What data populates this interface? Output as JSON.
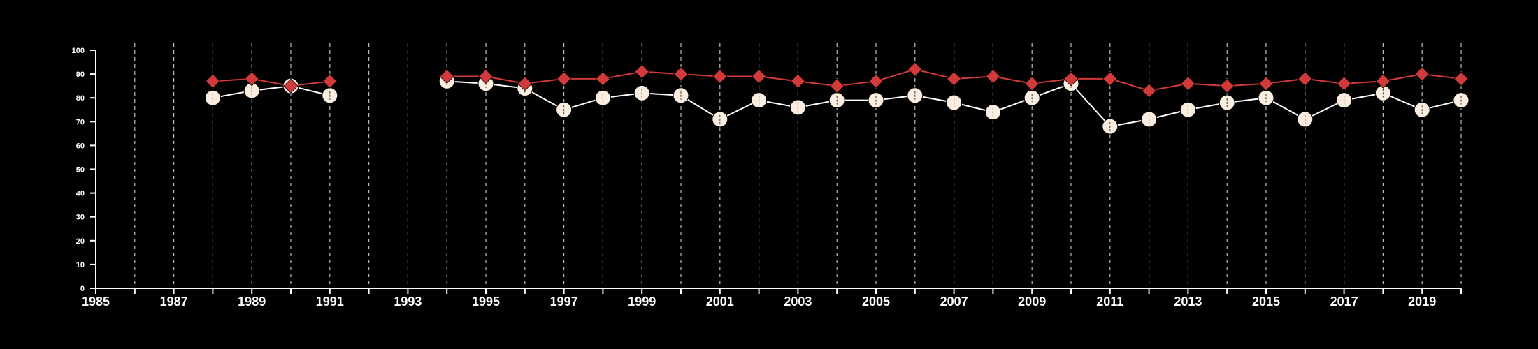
{
  "chart_data": {
    "type": "line",
    "title": "",
    "xlabel": "",
    "ylabel": "",
    "xlim": [
      1985,
      2020
    ],
    "ylim": [
      0,
      100
    ],
    "grid": "vertical dashed lines at each year",
    "legend": "none",
    "x_ticks": [
      1985,
      1987,
      1989,
      1991,
      1993,
      1995,
      1997,
      1999,
      2001,
      2003,
      2005,
      2007,
      2009,
      2011,
      2013,
      2015,
      2017,
      2019
    ],
    "y_ticks": [
      0,
      10,
      20,
      30,
      40,
      50,
      60,
      70,
      80,
      90,
      100
    ],
    "series": [
      {
        "color": "#d03a3a",
        "marker": "diamond",
        "line_color": "#d03a3a",
        "segments": [
          {
            "x": [
              1988,
              1989,
              1990,
              1991
            ],
            "y": [
              87,
              88,
              85,
              87
            ]
          },
          {
            "x": [
              1994,
              1995,
              1996,
              1997,
              1998,
              1999,
              2000,
              2001,
              2002,
              2003,
              2004,
              2005,
              2006,
              2007,
              2008,
              2009,
              2010,
              2011,
              2012,
              2013,
              2014,
              2015,
              2016,
              2017,
              2018,
              2019,
              2020
            ],
            "y": [
              89,
              89,
              86,
              88,
              88,
              91,
              90,
              89,
              89,
              87,
              85,
              87,
              92,
              88,
              89,
              86,
              88,
              88,
              83,
              86,
              85,
              86,
              88,
              86,
              87,
              90,
              88
            ]
          }
        ]
      },
      {
        "color": "#fbeee0",
        "marker": "circle",
        "line_color": "#ffffff",
        "segments": [
          {
            "x": [
              1988,
              1989,
              1990,
              1991
            ],
            "y": [
              80,
              83,
              85,
              81
            ]
          },
          {
            "x": [
              1994,
              1995,
              1996,
              1997,
              1998,
              1999,
              2000,
              2001,
              2002,
              2003,
              2004,
              2005,
              2006,
              2007,
              2008,
              2009,
              2010,
              2011,
              2012,
              2013,
              2014,
              2015,
              2016,
              2017,
              2018,
              2019,
              2020
            ],
            "y": [
              87,
              86,
              84,
              75,
              80,
              82,
              81,
              71,
              79,
              76,
              79,
              79,
              81,
              78,
              74,
              80,
              86,
              68,
              71,
              75,
              78,
              80,
              71,
              79,
              82,
              75,
              79
            ]
          }
        ]
      }
    ],
    "colors": {
      "background": "#000000",
      "axis": "#ffffff",
      "grid": "#bbbbbb"
    }
  }
}
